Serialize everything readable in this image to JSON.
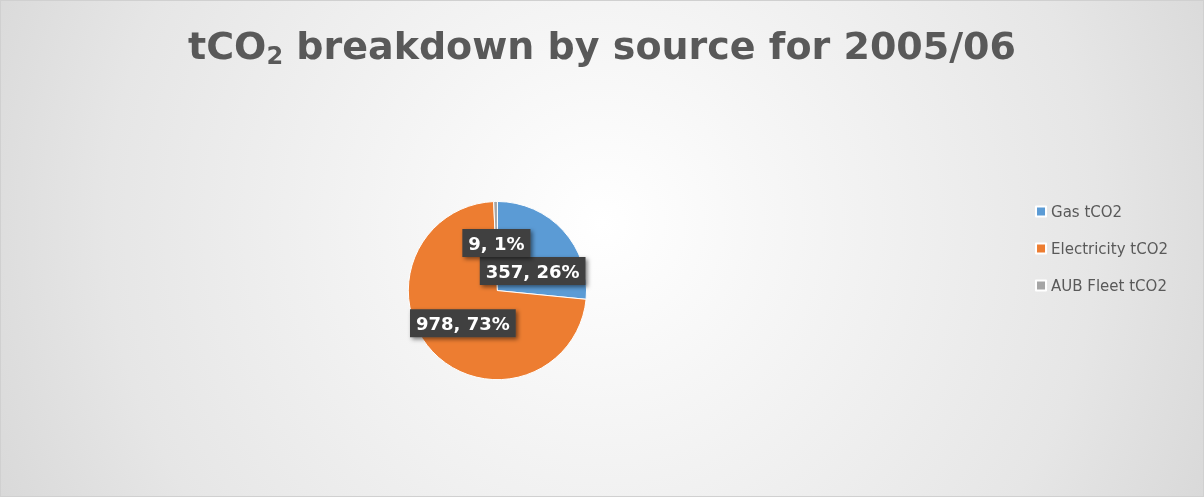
{
  "chart_data": {
    "type": "pie",
    "title": "tCO$_{2}$ breakdown by source for 2005/06",
    "categories": [
      "Gas tCO2",
      "Electricity tCO2",
      "AUB Fleet tCO2"
    ],
    "values": [
      357,
      978,
      9
    ],
    "colors": [
      "#5b9bd5",
      "#ed7d31",
      "#a5a5a5"
    ],
    "value_labels": [
      "357, 26%",
      "978, 73%",
      "9, 1%"
    ],
    "legend": "right"
  }
}
